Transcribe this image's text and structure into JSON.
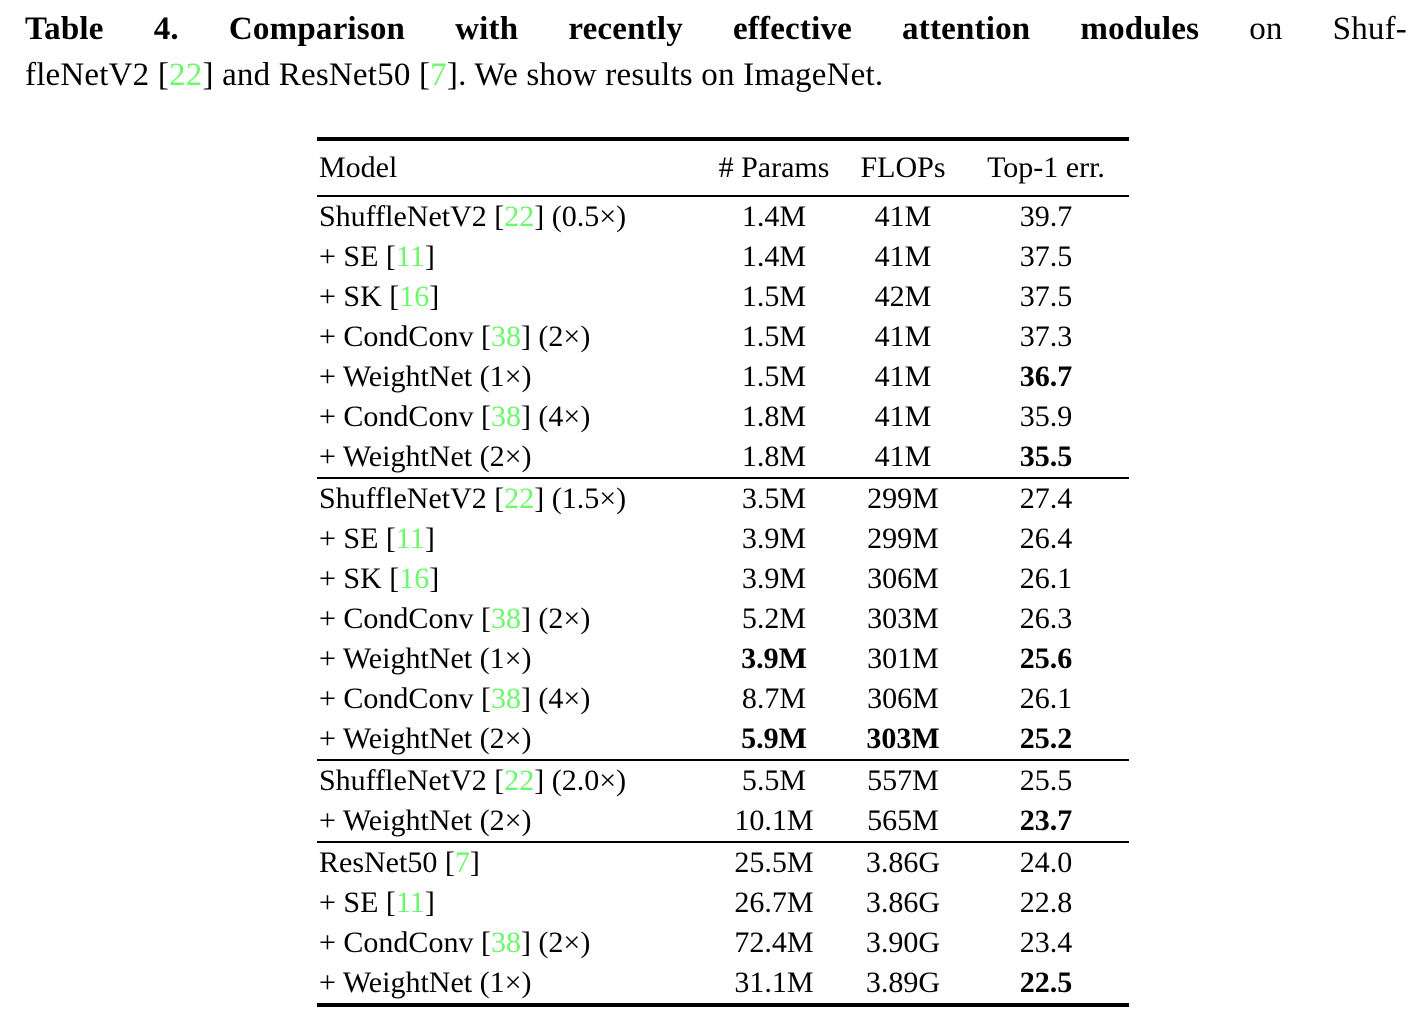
{
  "colors": {
    "citation_green": "#6cf86c",
    "text": "#000000",
    "background": "#ffffff",
    "rule": "#000000"
  },
  "caption": {
    "line1_segments": [
      {
        "text": "Table 4. Comparison with recently effective attention modules",
        "bold": true
      },
      {
        "text": " on Shuf-",
        "bold": false
      }
    ],
    "line2_segments": [
      {
        "text": "fleNetV2 [",
        "bold": false
      },
      {
        "text": "22",
        "cite": true
      },
      {
        "text": "] and ResNet50 [",
        "bold": false
      },
      {
        "text": "7",
        "cite": true
      },
      {
        "text": "]. We show results on ImageNet.",
        "bold": false
      }
    ]
  },
  "table": {
    "headers": [
      "Model",
      "# Params",
      "FLOPs",
      "Top-1 err."
    ],
    "sections": [
      {
        "rows": [
          {
            "model": [
              {
                "text": "ShuffleNetV2 ["
              },
              {
                "text": "22",
                "cite": true
              },
              {
                "text": "] (0.5×)"
              }
            ],
            "params": {
              "text": "1.4M"
            },
            "flops": {
              "text": "41M"
            },
            "top1": {
              "text": "39.7"
            }
          },
          {
            "model": [
              {
                "text": "+ SE ["
              },
              {
                "text": "11",
                "cite": true
              },
              {
                "text": "]"
              }
            ],
            "params": {
              "text": "1.4M"
            },
            "flops": {
              "text": "41M"
            },
            "top1": {
              "text": "37.5"
            }
          },
          {
            "model": [
              {
                "text": "+ SK ["
              },
              {
                "text": "16",
                "cite": true
              },
              {
                "text": "]"
              }
            ],
            "params": {
              "text": "1.5M"
            },
            "flops": {
              "text": "42M"
            },
            "top1": {
              "text": "37.5"
            }
          },
          {
            "model": [
              {
                "text": "+ CondConv ["
              },
              {
                "text": "38",
                "cite": true
              },
              {
                "text": "] (2×)"
              }
            ],
            "params": {
              "text": "1.5M"
            },
            "flops": {
              "text": "41M"
            },
            "top1": {
              "text": "37.3"
            }
          },
          {
            "model": [
              {
                "text": "+ WeightNet (1×)"
              }
            ],
            "params": {
              "text": "1.5M"
            },
            "flops": {
              "text": "41M"
            },
            "top1": {
              "text": "36.7",
              "bold": true
            }
          },
          {
            "model": [
              {
                "text": "+ CondConv ["
              },
              {
                "text": "38",
                "cite": true
              },
              {
                "text": "] (4×)"
              }
            ],
            "params": {
              "text": "1.8M"
            },
            "flops": {
              "text": "41M"
            },
            "top1": {
              "text": "35.9"
            }
          },
          {
            "model": [
              {
                "text": "+ WeightNet (2×)"
              }
            ],
            "params": {
              "text": "1.8M"
            },
            "flops": {
              "text": "41M"
            },
            "top1": {
              "text": "35.5",
              "bold": true
            }
          }
        ]
      },
      {
        "rows": [
          {
            "model": [
              {
                "text": "ShuffleNetV2 ["
              },
              {
                "text": "22",
                "cite": true
              },
              {
                "text": "] (1.5×)"
              }
            ],
            "params": {
              "text": "3.5M"
            },
            "flops": {
              "text": "299M"
            },
            "top1": {
              "text": "27.4"
            }
          },
          {
            "model": [
              {
                "text": "+ SE ["
              },
              {
                "text": "11",
                "cite": true
              },
              {
                "text": "]"
              }
            ],
            "params": {
              "text": "3.9M"
            },
            "flops": {
              "text": "299M"
            },
            "top1": {
              "text": "26.4"
            }
          },
          {
            "model": [
              {
                "text": "+ SK ["
              },
              {
                "text": "16",
                "cite": true
              },
              {
                "text": "]"
              }
            ],
            "params": {
              "text": "3.9M"
            },
            "flops": {
              "text": "306M"
            },
            "top1": {
              "text": "26.1"
            }
          },
          {
            "model": [
              {
                "text": "+ CondConv ["
              },
              {
                "text": "38",
                "cite": true
              },
              {
                "text": "] (2×)"
              }
            ],
            "params": {
              "text": "5.2M"
            },
            "flops": {
              "text": "303M"
            },
            "top1": {
              "text": "26.3"
            }
          },
          {
            "model": [
              {
                "text": "+ WeightNet (1×)"
              }
            ],
            "params": {
              "text": "3.9M",
              "bold": true
            },
            "flops": {
              "text": "301M"
            },
            "top1": {
              "text": "25.6",
              "bold": true
            }
          },
          {
            "model": [
              {
                "text": "+ CondConv ["
              },
              {
                "text": "38",
                "cite": true
              },
              {
                "text": "] (4×)"
              }
            ],
            "params": {
              "text": "8.7M"
            },
            "flops": {
              "text": "306M"
            },
            "top1": {
              "text": "26.1"
            }
          },
          {
            "model": [
              {
                "text": "+ WeightNet (2×)"
              }
            ],
            "params": {
              "text": "5.9M",
              "bold": true
            },
            "flops": {
              "text": "303M",
              "bold": true
            },
            "top1": {
              "text": "25.2",
              "bold": true
            }
          }
        ]
      },
      {
        "rows": [
          {
            "model": [
              {
                "text": "ShuffleNetV2 ["
              },
              {
                "text": "22",
                "cite": true
              },
              {
                "text": "] (2.0×)"
              }
            ],
            "params": {
              "text": "5.5M"
            },
            "flops": {
              "text": "557M"
            },
            "top1": {
              "text": "25.5"
            }
          },
          {
            "model": [
              {
                "text": "+ WeightNet (2×)"
              }
            ],
            "params": {
              "text": "10.1M"
            },
            "flops": {
              "text": "565M"
            },
            "top1": {
              "text": "23.7",
              "bold": true
            }
          }
        ]
      },
      {
        "rows": [
          {
            "model": [
              {
                "text": "ResNet50 ["
              },
              {
                "text": "7",
                "cite": true
              },
              {
                "text": "]"
              }
            ],
            "params": {
              "text": "25.5M"
            },
            "flops": {
              "text": "3.86G"
            },
            "top1": {
              "text": "24.0"
            }
          },
          {
            "model": [
              {
                "text": "+ SE ["
              },
              {
                "text": "11",
                "cite": true
              },
              {
                "text": "]"
              }
            ],
            "params": {
              "text": "26.7M"
            },
            "flops": {
              "text": "3.86G"
            },
            "top1": {
              "text": "22.8"
            }
          },
          {
            "model": [
              {
                "text": "+ CondConv ["
              },
              {
                "text": "38",
                "cite": true
              },
              {
                "text": "] (2×)"
              }
            ],
            "params": {
              "text": "72.4M"
            },
            "flops": {
              "text": "3.90G"
            },
            "top1": {
              "text": "23.4"
            }
          },
          {
            "model": [
              {
                "text": "+ WeightNet (1×)"
              }
            ],
            "params": {
              "text": "31.1M"
            },
            "flops": {
              "text": "3.89G"
            },
            "top1": {
              "text": "22.5",
              "bold": true
            }
          }
        ]
      }
    ]
  }
}
